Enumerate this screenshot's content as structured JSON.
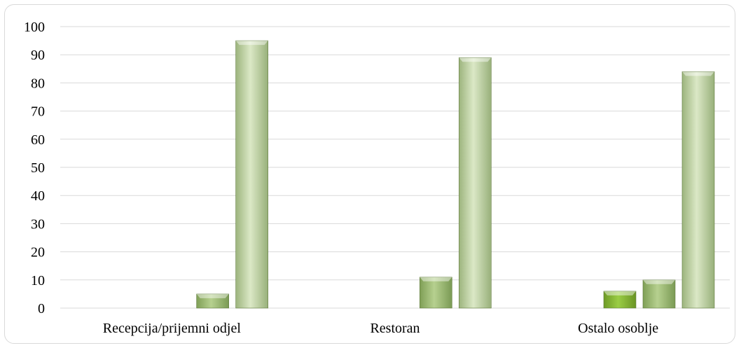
{
  "chart_data": {
    "type": "bar",
    "title": "",
    "xlabel": "",
    "ylabel": "",
    "ylim": [
      0,
      100
    ],
    "yticks": [
      0,
      10,
      20,
      30,
      40,
      50,
      60,
      70,
      80,
      90,
      100
    ],
    "grid": true,
    "legend": "none",
    "categories": [
      "Recepcija/prijemni odjel",
      "Restoran",
      "Ostalo osoblje"
    ],
    "series": [
      {
        "values": [
          0,
          0,
          6
        ],
        "color": "#8fbf3a"
      },
      {
        "values": [
          5,
          11,
          10
        ],
        "color": "#a6c47e"
      },
      {
        "values": [
          95,
          89,
          84
        ],
        "color": "#c9dcaa"
      }
    ]
  }
}
